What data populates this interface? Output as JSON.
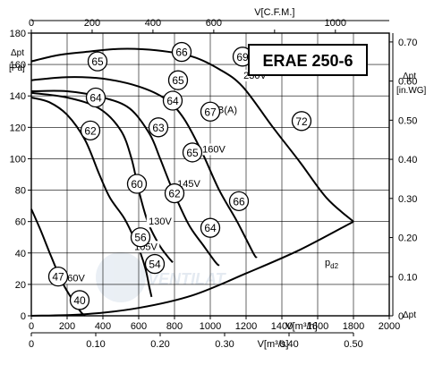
{
  "chart_data": {
    "type": "line",
    "title": "ERAE 250-6",
    "axes": {
      "bottom_primary": {
        "label": "V[m³/h]",
        "min": 0,
        "max": 2000,
        "ticks": [
          0,
          200,
          400,
          600,
          800,
          1000,
          1200,
          1400,
          1600,
          1800,
          2000
        ]
      },
      "bottom_secondary": {
        "label": "V[m³/s]",
        "ticks": [
          0,
          0.1,
          0.2,
          0.3,
          0.4,
          0.5
        ],
        "tick_labels": [
          "0",
          "0.10",
          "0.20",
          "0.30",
          "0.40",
          "0.50"
        ]
      },
      "top": {
        "label": "V[C.F.M.]",
        "ticks": [
          0,
          200,
          400,
          600,
          800,
          1000
        ]
      },
      "left": {
        "label_top": "Δpt",
        "label_unit": "[Pa]",
        "min": 0,
        "max": 180,
        "ticks": [
          0,
          20,
          40,
          60,
          80,
          100,
          120,
          140,
          160,
          180
        ]
      },
      "right": {
        "label_top": "Δpt",
        "label_unit": "[in.WG]",
        "ticks": [
          0,
          0.1,
          0.2,
          0.3,
          0.4,
          0.5,
          0.6,
          0.7
        ],
        "tick_labels": [
          "0",
          "0.10",
          "0.20",
          "0.30",
          "0.40",
          "0.50",
          "0.60",
          "0.70"
        ]
      }
    },
    "grid": true,
    "series": [
      {
        "name": "230V",
        "points": [
          [
            0,
            162
          ],
          [
            150,
            166
          ],
          [
            300,
            168
          ],
          [
            500,
            170
          ],
          [
            700,
            169
          ],
          [
            900,
            165
          ],
          [
            1050,
            157
          ],
          [
            1180,
            146
          ],
          [
            1350,
            120
          ],
          [
            1500,
            98
          ],
          [
            1650,
            75
          ],
          [
            1800,
            60
          ]
        ]
      },
      {
        "name": "160V",
        "points": [
          [
            0,
            150
          ],
          [
            200,
            152
          ],
          [
            400,
            151
          ],
          [
            600,
            146
          ],
          [
            750,
            138
          ],
          [
            850,
            126
          ],
          [
            950,
            105
          ],
          [
            1050,
            80
          ],
          [
            1150,
            60
          ],
          [
            1240,
            40
          ],
          [
            1260,
            37
          ]
        ]
      },
      {
        "name": "145V",
        "points": [
          [
            0,
            143
          ],
          [
            200,
            143
          ],
          [
            400,
            139
          ],
          [
            550,
            132
          ],
          [
            660,
            116
          ],
          [
            720,
            100
          ],
          [
            790,
            80
          ],
          [
            880,
            58
          ],
          [
            960,
            45
          ],
          [
            1030,
            34
          ],
          [
            1050,
            32
          ]
        ]
      },
      {
        "name": "130V",
        "points": [
          [
            0,
            142
          ],
          [
            200,
            139
          ],
          [
            380,
            132
          ],
          [
            500,
            118
          ],
          [
            560,
            100
          ],
          [
            600,
            80
          ],
          [
            650,
            60
          ],
          [
            710,
            46
          ],
          [
            760,
            38
          ],
          [
            790,
            34
          ]
        ]
      },
      {
        "name": "105V",
        "points": [
          [
            0,
            139
          ],
          [
            100,
            136
          ],
          [
            200,
            128
          ],
          [
            300,
            112
          ],
          [
            380,
            90
          ],
          [
            440,
            75
          ],
          [
            520,
            62
          ],
          [
            580,
            48
          ],
          [
            610,
            40
          ],
          [
            640,
            29
          ],
          [
            660,
            18
          ],
          [
            672,
            12
          ]
        ]
      },
      {
        "name": "60V",
        "points": [
          [
            0,
            68
          ],
          [
            50,
            55
          ],
          [
            110,
            38
          ],
          [
            170,
            22
          ],
          [
            220,
            12
          ],
          [
            260,
            5
          ],
          [
            280,
            2
          ],
          [
            300,
            0
          ]
        ]
      },
      {
        "name": "pd2",
        "points": [
          [
            0,
            0
          ],
          [
            300,
            1
          ],
          [
            600,
            5
          ],
          [
            900,
            13
          ],
          [
            1200,
            27
          ],
          [
            1500,
            42
          ],
          [
            1800,
            60
          ]
        ]
      }
    ],
    "voltage_labels": [
      {
        "text": "230V",
        "x": 1250,
        "y": 151
      },
      {
        "text": "160V",
        "x": 1020,
        "y": 104
      },
      {
        "text": "145V",
        "x": 880,
        "y": 82
      },
      {
        "text": "130V",
        "x": 720,
        "y": 58
      },
      {
        "text": "105V",
        "x": 640,
        "y": 42
      },
      {
        "text": "60V",
        "x": 250,
        "y": 22
      },
      {
        "text": "dB(A)",
        "x": 1080,
        "y": 129
      },
      {
        "text": "pd2",
        "x": 1640,
        "y": 32
      }
    ],
    "sound_levels": [
      {
        "text": "65",
        "x": 370,
        "y": 162
      },
      {
        "text": "66",
        "x": 840,
        "y": 168
      },
      {
        "text": "69",
        "x": 1180,
        "y": 165
      },
      {
        "text": "65",
        "x": 820,
        "y": 150
      },
      {
        "text": "64",
        "x": 360,
        "y": 139
      },
      {
        "text": "64",
        "x": 790,
        "y": 137
      },
      {
        "text": "67",
        "x": 1000,
        "y": 130
      },
      {
        "text": "72",
        "x": 1510,
        "y": 124
      },
      {
        "text": "62",
        "x": 330,
        "y": 118
      },
      {
        "text": "63",
        "x": 710,
        "y": 120
      },
      {
        "text": "65",
        "x": 900,
        "y": 104
      },
      {
        "text": "60",
        "x": 590,
        "y": 84
      },
      {
        "text": "62",
        "x": 800,
        "y": 78
      },
      {
        "text": "66",
        "x": 1160,
        "y": 73
      },
      {
        "text": "64",
        "x": 1000,
        "y": 56
      },
      {
        "text": "56",
        "x": 610,
        "y": 50
      },
      {
        "text": "54",
        "x": 690,
        "y": 33
      },
      {
        "text": "47",
        "x": 150,
        "y": 25
      },
      {
        "text": "40",
        "x": 270,
        "y": 10
      }
    ]
  }
}
